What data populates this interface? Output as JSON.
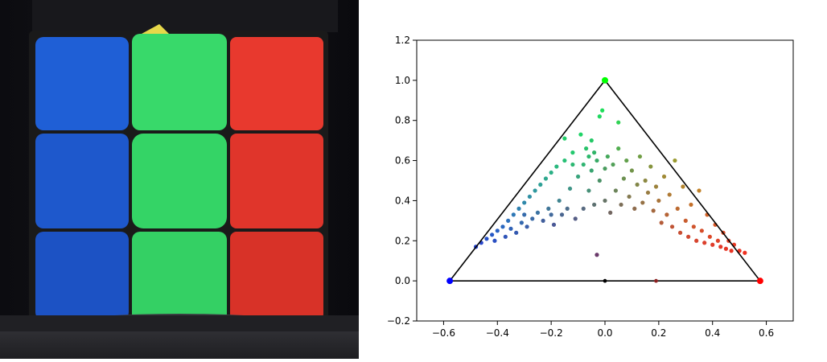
{
  "photo": {
    "subject": "rubiks-cube",
    "face_columns": [
      {
        "color": "#1f5fd6"
      },
      {
        "color": "#38d96a"
      },
      {
        "color": "#e8392e"
      }
    ]
  },
  "chart_data": {
    "type": "scatter",
    "title": "",
    "xlabel": "",
    "ylabel": "",
    "xlim": [
      -0.7,
      0.7
    ],
    "ylim": [
      -0.2,
      1.2
    ],
    "xticks": [
      "−0.6",
      "−0.4",
      "−0.2",
      "0.0",
      "0.2",
      "0.4",
      "0.6"
    ],
    "xtick_values": [
      -0.6,
      -0.4,
      -0.2,
      0.0,
      0.2,
      0.4,
      0.6
    ],
    "yticks": [
      "−0.2",
      "0.0",
      "0.2",
      "0.4",
      "0.6",
      "0.8",
      "1.0",
      "1.2"
    ],
    "ytick_values": [
      -0.2,
      0.0,
      0.2,
      0.4,
      0.6,
      0.8,
      1.0,
      1.2
    ],
    "grid": false,
    "triangle": {
      "vertices": [
        {
          "x": -0.577,
          "y": 0.0,
          "color": "#0000ff"
        },
        {
          "x": 0.0,
          "y": 1.0,
          "color": "#00ff00"
        },
        {
          "x": 0.577,
          "y": 0.0,
          "color": "#ff0000"
        }
      ],
      "edge_color": "#000000"
    },
    "markers": [
      {
        "x": 0.0,
        "y": 0.0,
        "color": "#000000"
      },
      {
        "x": 0.19,
        "y": 0.0,
        "color": "#8b2020"
      }
    ],
    "points": [
      {
        "x": -0.48,
        "y": 0.17,
        "color": "#1f3fd0"
      },
      {
        "x": -0.46,
        "y": 0.19,
        "color": "#2a48cc"
      },
      {
        "x": -0.44,
        "y": 0.21,
        "color": "#2450c8"
      },
      {
        "x": -0.42,
        "y": 0.23,
        "color": "#2658c6"
      },
      {
        "x": -0.41,
        "y": 0.2,
        "color": "#2a4fc2"
      },
      {
        "x": -0.4,
        "y": 0.25,
        "color": "#2860c4"
      },
      {
        "x": -0.38,
        "y": 0.27,
        "color": "#2a68c0"
      },
      {
        "x": -0.37,
        "y": 0.22,
        "color": "#3055b8"
      },
      {
        "x": -0.36,
        "y": 0.3,
        "color": "#2c70bc"
      },
      {
        "x": -0.35,
        "y": 0.26,
        "color": "#2f62b6"
      },
      {
        "x": -0.34,
        "y": 0.33,
        "color": "#2e78b6"
      },
      {
        "x": -0.33,
        "y": 0.24,
        "color": "#3459b0"
      },
      {
        "x": -0.32,
        "y": 0.36,
        "color": "#2f80b0"
      },
      {
        "x": -0.31,
        "y": 0.29,
        "color": "#3468ae"
      },
      {
        "x": -0.3,
        "y": 0.39,
        "color": "#2f88aa"
      },
      {
        "x": -0.29,
        "y": 0.27,
        "color": "#3a5eaa"
      },
      {
        "x": -0.28,
        "y": 0.42,
        "color": "#2f90a4"
      },
      {
        "x": -0.27,
        "y": 0.31,
        "color": "#3a6aa6"
      },
      {
        "x": -0.26,
        "y": 0.45,
        "color": "#2e989e"
      },
      {
        "x": -0.25,
        "y": 0.34,
        "color": "#3a72a2"
      },
      {
        "x": -0.24,
        "y": 0.48,
        "color": "#2ea096"
      },
      {
        "x": -0.23,
        "y": 0.3,
        "color": "#405e9c"
      },
      {
        "x": -0.22,
        "y": 0.51,
        "color": "#2ea88e"
      },
      {
        "x": -0.21,
        "y": 0.36,
        "color": "#407698"
      },
      {
        "x": -0.2,
        "y": 0.54,
        "color": "#2cb086"
      },
      {
        "x": -0.19,
        "y": 0.28,
        "color": "#4a5896"
      },
      {
        "x": -0.18,
        "y": 0.57,
        "color": "#2ab87e"
      },
      {
        "x": -0.17,
        "y": 0.4,
        "color": "#408490"
      },
      {
        "x": -0.16,
        "y": 0.33,
        "color": "#4a6690"
      },
      {
        "x": -0.15,
        "y": 0.6,
        "color": "#28c076"
      },
      {
        "x": -0.14,
        "y": 0.36,
        "color": "#4c6c8a"
      },
      {
        "x": -0.13,
        "y": 0.46,
        "color": "#3e9486"
      },
      {
        "x": -0.12,
        "y": 0.64,
        "color": "#24c86e"
      },
      {
        "x": -0.11,
        "y": 0.31,
        "color": "#565e86"
      },
      {
        "x": -0.1,
        "y": 0.52,
        "color": "#38a47c"
      },
      {
        "x": -0.09,
        "y": 0.73,
        "color": "#1ed466"
      },
      {
        "x": -0.08,
        "y": 0.58,
        "color": "#30b472"
      },
      {
        "x": -0.08,
        "y": 0.36,
        "color": "#586a80"
      },
      {
        "x": -0.07,
        "y": 0.66,
        "color": "#28c26a"
      },
      {
        "x": -0.06,
        "y": 0.62,
        "color": "#2cb86c"
      },
      {
        "x": -0.06,
        "y": 0.45,
        "color": "#489078"
      },
      {
        "x": -0.05,
        "y": 0.7,
        "color": "#24c866"
      },
      {
        "x": -0.05,
        "y": 0.55,
        "color": "#38a470"
      },
      {
        "x": -0.04,
        "y": 0.64,
        "color": "#30b468"
      },
      {
        "x": -0.04,
        "y": 0.38,
        "color": "#5c7070"
      },
      {
        "x": -0.03,
        "y": 0.6,
        "color": "#38aa66"
      },
      {
        "x": -0.03,
        "y": 0.13,
        "color": "#6a3a6a"
      },
      {
        "x": -0.02,
        "y": 0.5,
        "color": "#4a9066"
      },
      {
        "x": -0.02,
        "y": 0.82,
        "color": "#20d860"
      },
      {
        "x": -0.01,
        "y": 0.85,
        "color": "#1ede5a"
      },
      {
        "x": 0.0,
        "y": 0.56,
        "color": "#4a9c5e"
      },
      {
        "x": 0.0,
        "y": 0.4,
        "color": "#667466"
      },
      {
        "x": 0.01,
        "y": 0.62,
        "color": "#44a85a"
      },
      {
        "x": 0.02,
        "y": 0.34,
        "color": "#726660"
      },
      {
        "x": 0.03,
        "y": 0.58,
        "color": "#52a058"
      },
      {
        "x": 0.04,
        "y": 0.45,
        "color": "#6c845a"
      },
      {
        "x": 0.05,
        "y": 0.66,
        "color": "#52ae50"
      },
      {
        "x": 0.06,
        "y": 0.38,
        "color": "#7c6e58"
      },
      {
        "x": 0.07,
        "y": 0.51,
        "color": "#6c9050"
      },
      {
        "x": 0.08,
        "y": 0.6,
        "color": "#62a04c"
      },
      {
        "x": 0.09,
        "y": 0.42,
        "color": "#847a50"
      },
      {
        "x": 0.1,
        "y": 0.55,
        "color": "#72944a"
      },
      {
        "x": 0.11,
        "y": 0.36,
        "color": "#8e6c4e"
      },
      {
        "x": 0.12,
        "y": 0.48,
        "color": "#828648"
      },
      {
        "x": 0.13,
        "y": 0.62,
        "color": "#709e44"
      },
      {
        "x": 0.14,
        "y": 0.39,
        "color": "#967246"
      },
      {
        "x": 0.15,
        "y": 0.5,
        "color": "#8c8842"
      },
      {
        "x": 0.16,
        "y": 0.44,
        "color": "#987c42"
      },
      {
        "x": 0.17,
        "y": 0.57,
        "color": "#86943e"
      },
      {
        "x": 0.18,
        "y": 0.35,
        "color": "#a4683e"
      },
      {
        "x": 0.19,
        "y": 0.47,
        "color": "#9c823c"
      },
      {
        "x": 0.2,
        "y": 0.4,
        "color": "#a8743a"
      },
      {
        "x": 0.21,
        "y": 0.29,
        "color": "#b45c3a"
      },
      {
        "x": 0.22,
        "y": 0.52,
        "color": "#a08a36"
      },
      {
        "x": 0.23,
        "y": 0.33,
        "color": "#b66436"
      },
      {
        "x": 0.24,
        "y": 0.43,
        "color": "#b07a34"
      },
      {
        "x": 0.25,
        "y": 0.27,
        "color": "#c05436"
      },
      {
        "x": 0.26,
        "y": 0.6,
        "color": "#9a9a30"
      },
      {
        "x": 0.27,
        "y": 0.36,
        "color": "#bc6a30"
      },
      {
        "x": 0.28,
        "y": 0.24,
        "color": "#c84e32"
      },
      {
        "x": 0.29,
        "y": 0.47,
        "color": "#b4842c"
      },
      {
        "x": 0.3,
        "y": 0.3,
        "color": "#c85c2e"
      },
      {
        "x": 0.31,
        "y": 0.22,
        "color": "#d04830"
      },
      {
        "x": 0.32,
        "y": 0.38,
        "color": "#c4702a"
      },
      {
        "x": 0.33,
        "y": 0.27,
        "color": "#d0542c"
      },
      {
        "x": 0.34,
        "y": 0.2,
        "color": "#d6442e"
      },
      {
        "x": 0.35,
        "y": 0.45,
        "color": "#c28228"
      },
      {
        "x": 0.36,
        "y": 0.25,
        "color": "#d64e2a"
      },
      {
        "x": 0.37,
        "y": 0.19,
        "color": "#dc402c"
      },
      {
        "x": 0.38,
        "y": 0.33,
        "color": "#d06228"
      },
      {
        "x": 0.39,
        "y": 0.22,
        "color": "#dc4828"
      },
      {
        "x": 0.4,
        "y": 0.18,
        "color": "#e03c2a"
      },
      {
        "x": 0.41,
        "y": 0.28,
        "color": "#d85626"
      },
      {
        "x": 0.42,
        "y": 0.2,
        "color": "#e04228"
      },
      {
        "x": 0.43,
        "y": 0.17,
        "color": "#e43828"
      },
      {
        "x": 0.44,
        "y": 0.24,
        "color": "#e04c26"
      },
      {
        "x": 0.45,
        "y": 0.16,
        "color": "#e63626"
      },
      {
        "x": 0.46,
        "y": 0.2,
        "color": "#e44026"
      },
      {
        "x": 0.47,
        "y": 0.15,
        "color": "#e83424"
      },
      {
        "x": 0.48,
        "y": 0.18,
        "color": "#e83a24"
      },
      {
        "x": 0.5,
        "y": 0.15,
        "color": "#ec3222"
      },
      {
        "x": 0.52,
        "y": 0.14,
        "color": "#ee3020"
      },
      {
        "x": -0.15,
        "y": 0.71,
        "color": "#20cc68"
      },
      {
        "x": -0.12,
        "y": 0.58,
        "color": "#2cb872"
      },
      {
        "x": 0.05,
        "y": 0.79,
        "color": "#30d254"
      },
      {
        "x": -0.3,
        "y": 0.33,
        "color": "#366cac"
      },
      {
        "x": -0.2,
        "y": 0.33,
        "color": "#426a9c"
      }
    ]
  }
}
